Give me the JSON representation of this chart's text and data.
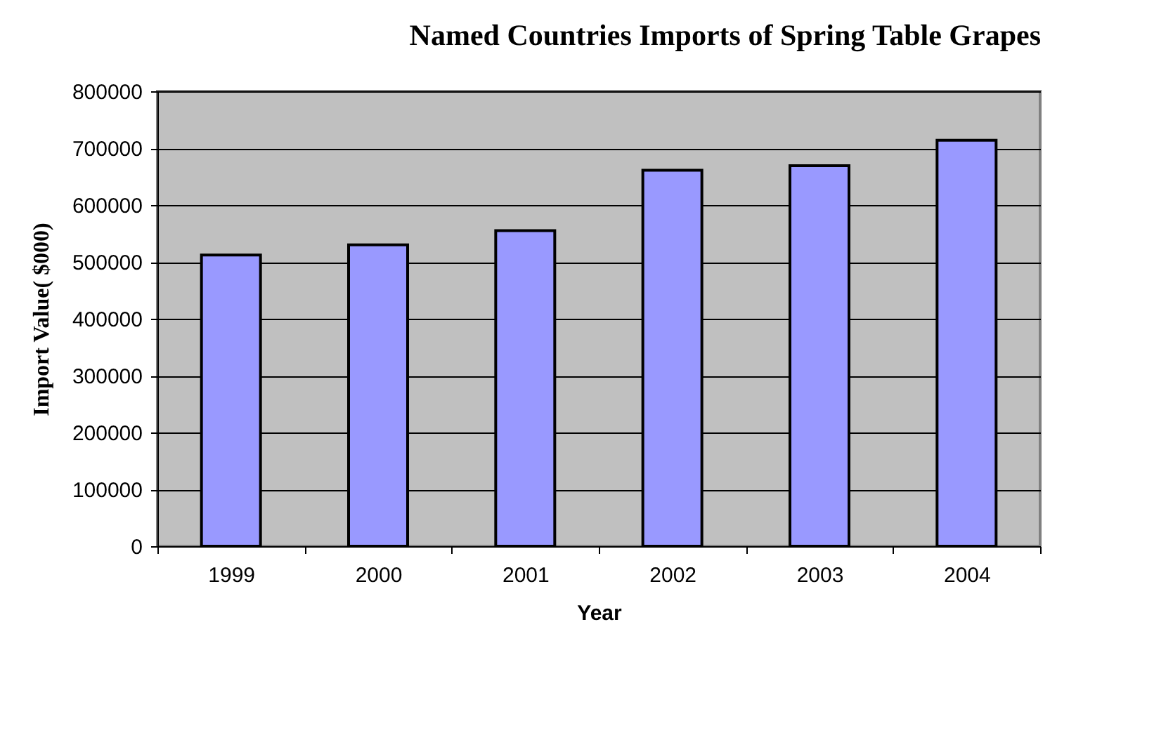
{
  "chart_data": {
    "type": "bar",
    "title": "Named Countries Imports of Spring Table Grapes",
    "xlabel": "Year",
    "ylabel": "Import Value( $000)",
    "categories": [
      "1999",
      "2000",
      "2001",
      "2002",
      "2003",
      "2004"
    ],
    "values": [
      512000,
      530000,
      555000,
      661000,
      669000,
      714000
    ],
    "color": "#9999ff",
    "ylim": [
      0,
      800000
    ],
    "yticks": [
      0,
      100000,
      200000,
      300000,
      400000,
      500000,
      600000,
      700000,
      800000
    ],
    "grid": "y"
  }
}
